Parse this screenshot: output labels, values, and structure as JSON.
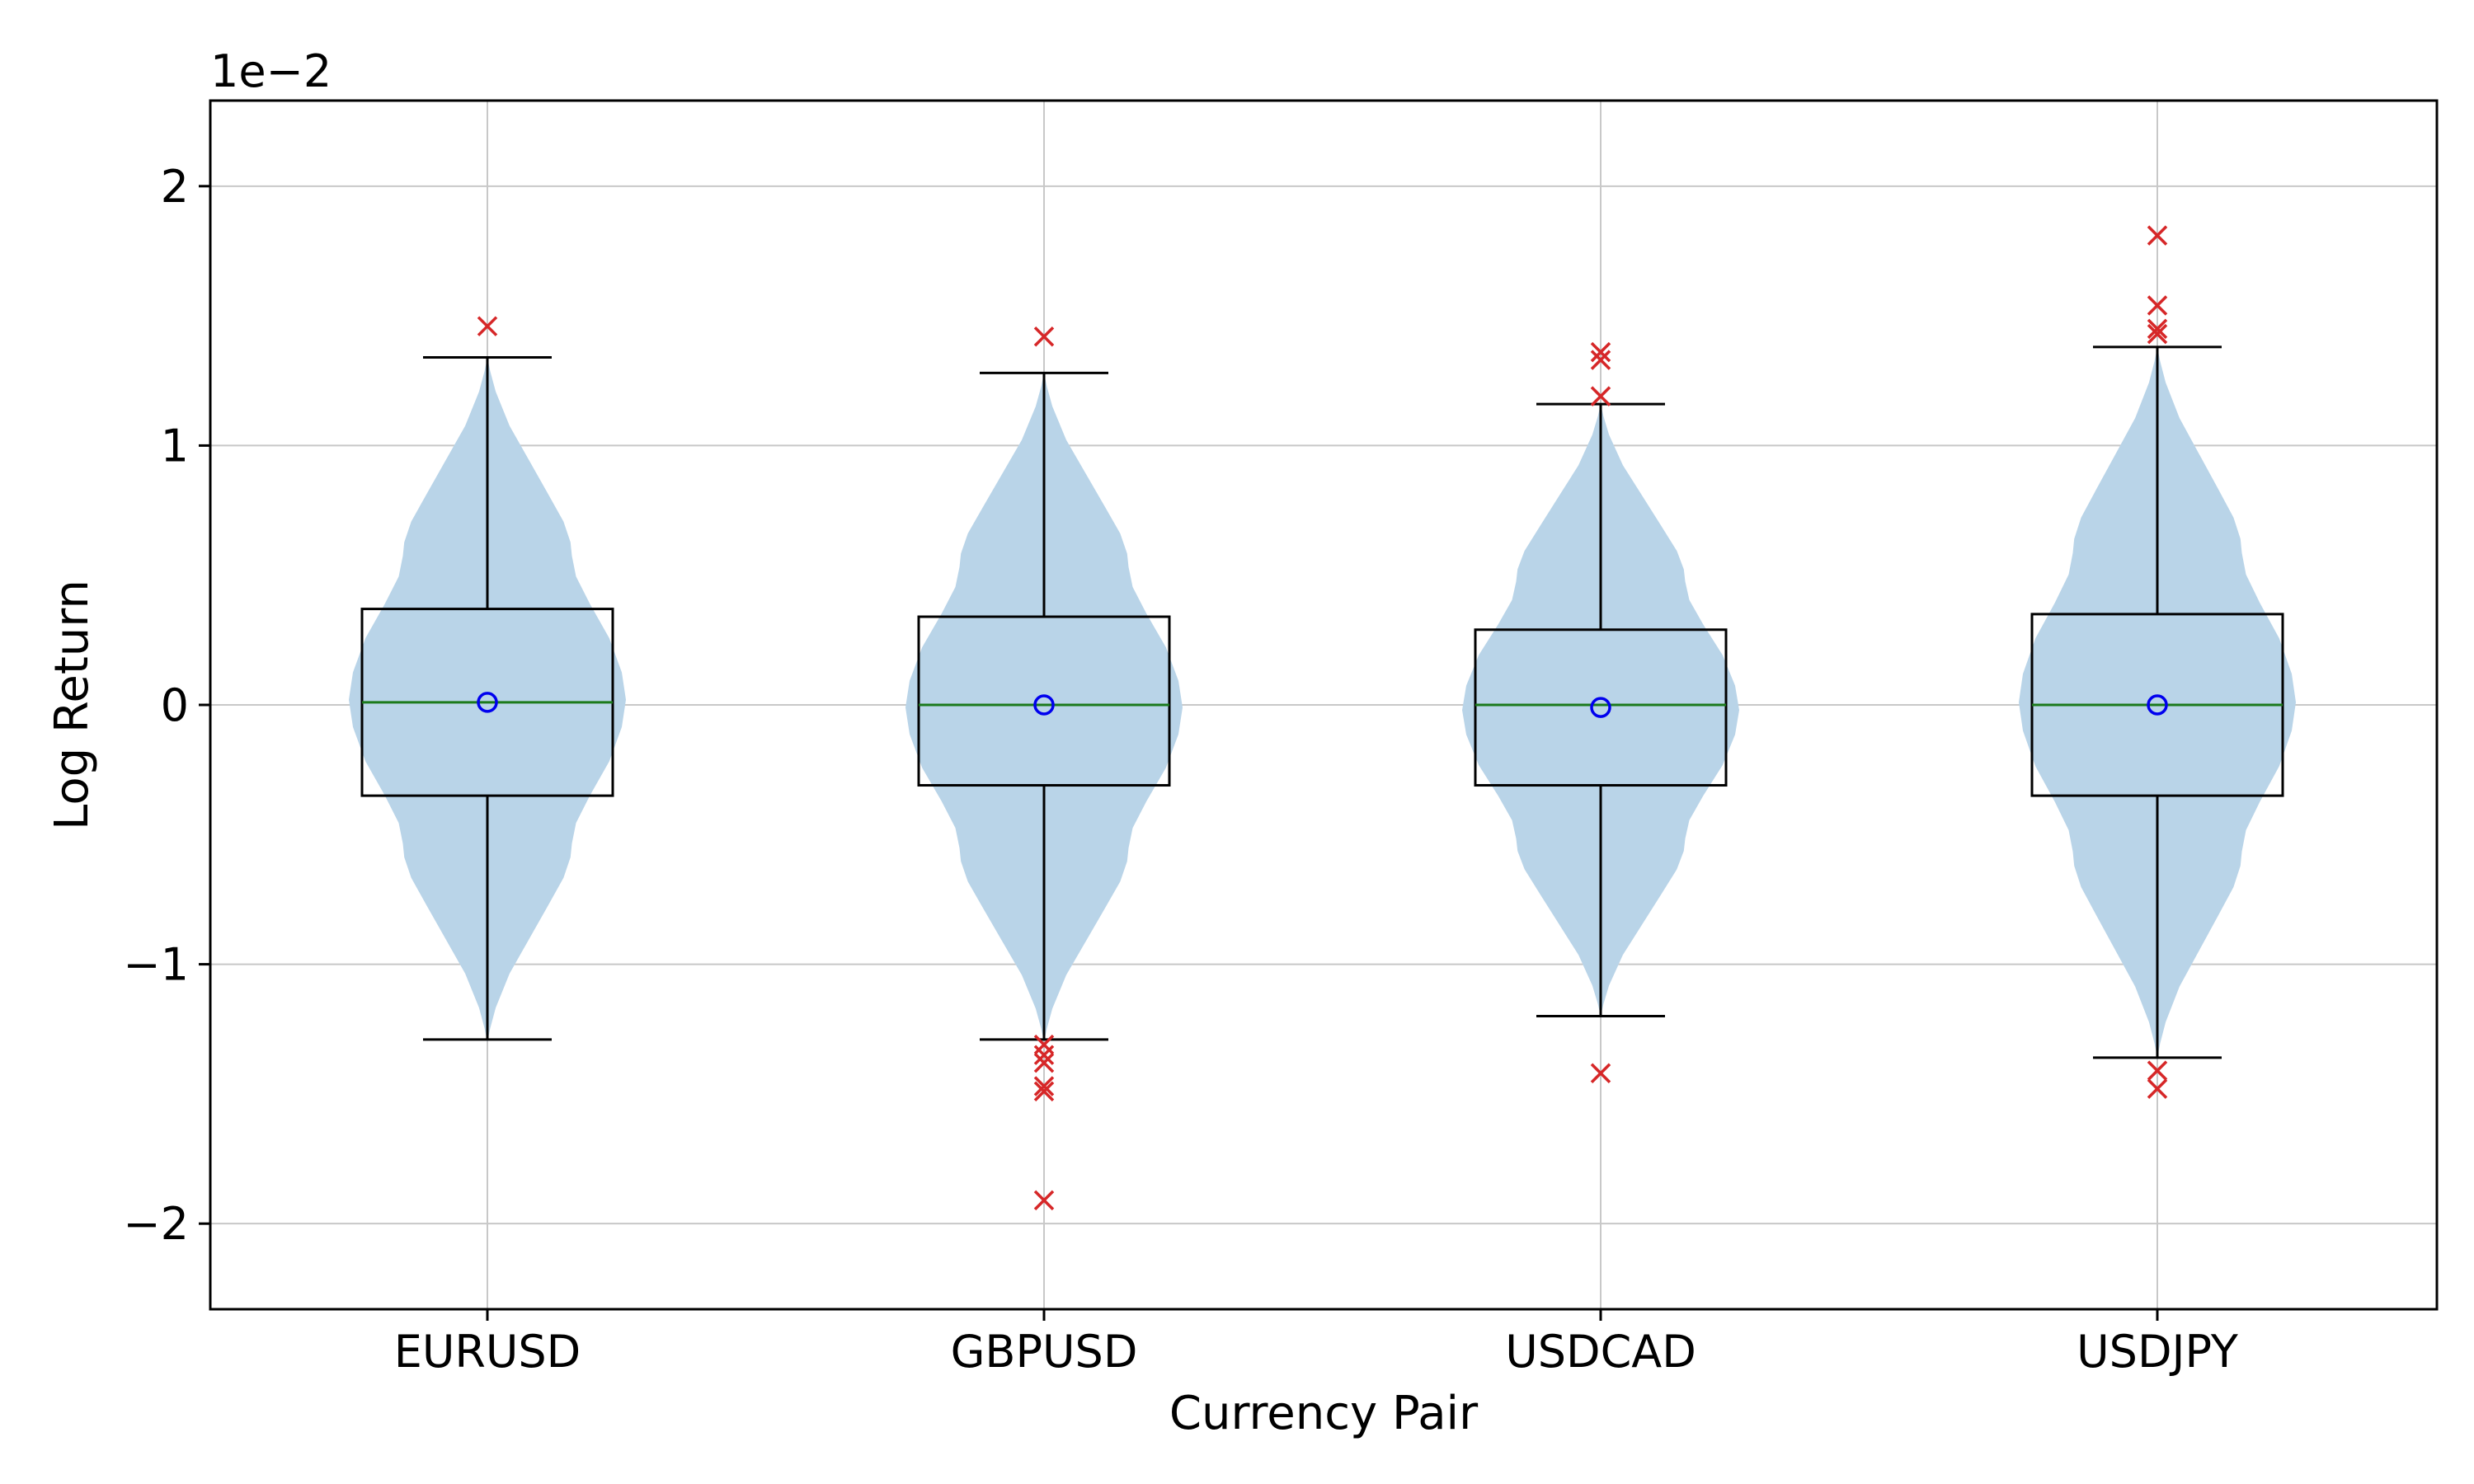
{
  "chart_data": {
    "type": "violin",
    "title": "",
    "xlabel": "Currency Pair",
    "ylabel": "Log Return",
    "y_offset_label": "1e−2",
    "y_scale_factor": 0.01,
    "ylim": [
      -2.33,
      2.33
    ],
    "yticks": [
      -2,
      -1,
      0,
      1,
      2
    ],
    "ytick_labels": [
      "−2",
      "−1",
      "0",
      "1",
      "2"
    ],
    "grid": true,
    "categories": [
      "EURUSD",
      "GBPUSD",
      "USDCAD",
      "USDJPY"
    ],
    "colors": {
      "violin": "#b9d4e8",
      "box": "#000000",
      "median": "#1b7a1b",
      "mean": "#0000ee",
      "outlier": "#d62728",
      "grid": "#c8c8c8"
    },
    "series": [
      {
        "q1": -0.35,
        "median": 0.01,
        "q3": 0.37,
        "mean": 0.01,
        "whisker_low": -1.29,
        "whisker_high": 1.34,
        "outliers": [
          1.46
        ],
        "violin_min": -1.3,
        "violin_max": 1.34
      },
      {
        "q1": -0.31,
        "median": 0.0,
        "q3": 0.34,
        "mean": 0.0,
        "whisker_low": -1.29,
        "whisker_high": 1.28,
        "outliers": [
          1.42,
          -1.31,
          -1.35,
          -1.38,
          -1.47,
          -1.49,
          -1.91
        ],
        "violin_min": -1.3,
        "violin_max": 1.28
      },
      {
        "q1": -0.31,
        "median": 0.0,
        "q3": 0.29,
        "mean": -0.01,
        "whisker_low": -1.2,
        "whisker_high": 1.16,
        "outliers": [
          1.36,
          1.33,
          1.19,
          -1.42
        ],
        "violin_min": -1.2,
        "violin_max": 1.16
      },
      {
        "q1": -0.35,
        "median": 0.0,
        "q3": 0.35,
        "mean": 0.0,
        "whisker_low": -1.36,
        "whisker_high": 1.38,
        "outliers": [
          1.81,
          1.54,
          1.45,
          1.43,
          -1.41,
          -1.48
        ],
        "violin_min": -1.36,
        "violin_max": 1.38
      }
    ]
  }
}
